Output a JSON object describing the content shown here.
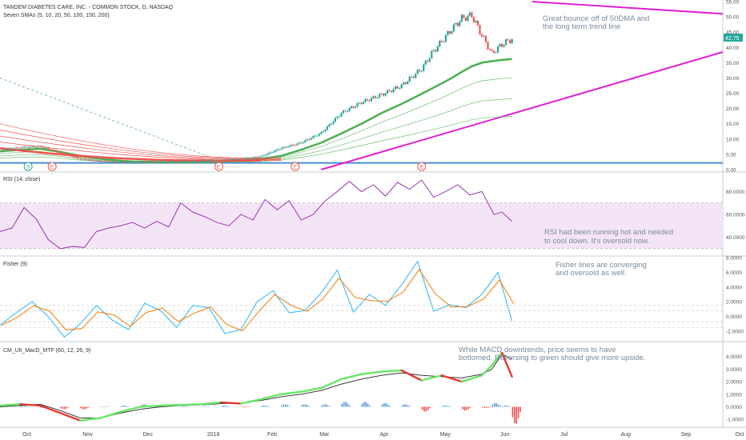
{
  "colors": {
    "candle_up": "#26a69a",
    "candle_down": "#ef5350",
    "trendline": "#e020d0",
    "sma_green": "#4caf50",
    "sma_red": "#ef5350",
    "baseline": "#4a8fd6",
    "rsi_line": "#8e24aa",
    "rsi_band": "#f3e5f5",
    "fisher_a": "#f57c00",
    "fisher_b": "#29b6f6",
    "macd_green": "#66e766",
    "macd_red": "#e53935",
    "macd_signal": "#222222",
    "hist_up": "#5c9bd6",
    "hist_down": "#ef5350",
    "annotation": "#7a8a9a",
    "price_tag": "#26a69a"
  },
  "chart_data": [
    {
      "type": "line",
      "panel": "price",
      "title": "TANDEM DIABETES CARE, INC. - COMMON STOCK, D, NASDAQ",
      "subtitle": "Seven SMAs (5, 10, 20, 50, 100, 150, 200)",
      "annotation": [
        "Great bounce off of 50DMA and",
        "the long term trend line"
      ],
      "last_price": "42.75",
      "earnings_markers": [
        "S",
        "E",
        "E",
        "E",
        "E"
      ],
      "yticks": [
        "55.00",
        "50.00",
        "45.00",
        "40.00",
        "35.00",
        "30.00",
        "25.00",
        "20.00",
        "15.00",
        "10.00",
        "5.00",
        "0.00"
      ],
      "ylim": [
        0,
        55
      ],
      "x": [
        0,
        10,
        20,
        30,
        40,
        50,
        60,
        65,
        70,
        80,
        90,
        100,
        110,
        120,
        130,
        140,
        150,
        160,
        170,
        180,
        190,
        200,
        210,
        215,
        220,
        225,
        230,
        235,
        240,
        245,
        250,
        255
      ],
      "close": [
        6.5,
        7.2,
        7.6,
        5.5,
        3.5,
        2.8,
        2.5,
        2.5,
        2.6,
        2.6,
        2.7,
        2.9,
        3.2,
        3.4,
        4.3,
        7.0,
        8.8,
        12.0,
        18.5,
        22.0,
        24.5,
        27.5,
        33.0,
        38.0,
        42.0,
        46.0,
        49.5,
        50.5,
        44.0,
        38.0,
        41.0,
        42.75
      ],
      "series": [
        {
          "name": "SMA 50",
          "values": [
            6.0,
            6.5,
            6.8,
            5.8,
            4.5,
            3.6,
            2.9,
            2.7,
            2.6,
            2.5,
            2.5,
            2.6,
            2.8,
            3.0,
            3.5,
            4.5,
            6.5,
            8.8,
            11.8,
            15.0,
            18.5,
            21.5,
            24.8,
            26.5,
            28.2,
            30.0,
            32.0,
            33.8,
            35.0,
            35.5,
            35.9,
            36.2
          ]
        }
      ]
    },
    {
      "type": "line",
      "panel": "rsi",
      "title": "RSI (14, close)",
      "annotation": [
        "RSI had been running hot and needed",
        "to cool down. It's oversold now."
      ],
      "yticks": [
        "80.0000",
        "60.0000",
        "40.0000"
      ],
      "ylim": [
        25,
        95
      ],
      "bands": [
        70,
        30
      ],
      "x": [
        0,
        6,
        12,
        18,
        24,
        30,
        36,
        42,
        48,
        54,
        60,
        66,
        72,
        78,
        84,
        90,
        96,
        102,
        108,
        114,
        120,
        126,
        132,
        138,
        144,
        150,
        156,
        162,
        168,
        174,
        180,
        186,
        192,
        198,
        204,
        210,
        216,
        222,
        228,
        234,
        240,
        246,
        250,
        255
      ],
      "values": [
        45,
        48,
        66,
        56,
        38,
        30,
        32,
        31,
        45,
        48,
        50,
        53,
        48,
        54,
        49,
        70,
        62,
        58,
        53,
        50,
        60,
        55,
        73,
        64,
        72,
        55,
        60,
        72,
        80,
        89,
        80,
        86,
        76,
        88,
        82,
        90,
        75,
        80,
        86,
        77,
        80,
        60,
        62,
        54
      ]
    },
    {
      "type": "line",
      "panel": "fisher",
      "title": "Fisher (9)",
      "annotation": [
        "Fisher lines are converging",
        "and oversold as well."
      ],
      "yticks": [
        "8.0000",
        "6.0000",
        "4.0000",
        "2.0000",
        "0.0000",
        "-2.0000"
      ],
      "ylim": [
        -3.2,
        8
      ],
      "x": [
        0,
        8,
        16,
        24,
        32,
        40,
        48,
        56,
        64,
        72,
        80,
        88,
        96,
        104,
        112,
        120,
        128,
        136,
        144,
        152,
        160,
        168,
        176,
        184,
        192,
        200,
        208,
        216,
        224,
        232,
        240,
        248,
        255
      ],
      "values": [
        -1.2,
        0.5,
        2.0,
        0.0,
        -2.8,
        -1.0,
        1.5,
        -0.5,
        -1.8,
        1.8,
        0.8,
        -1.5,
        1.5,
        1.2,
        -2.3,
        -1.8,
        2.0,
        3.5,
        0.5,
        0.8,
        3.2,
        6.3,
        0.6,
        3.0,
        1.5,
        4.3,
        7.5,
        0.7,
        1.6,
        1.2,
        3.0,
        6.0,
        -0.6
      ]
    },
    {
      "type": "bar",
      "panel": "macd",
      "title": "CM_Ult_MacD_MTF (60, 12, 26, 9)",
      "annotation": [
        "While MACD downtrends, price seems to have",
        "bottomed. Reversing to green should give more upside."
      ],
      "yticks": [
        "4.0000",
        "3.0000",
        "2.0000",
        "1.0000",
        "0.0000",
        "-1.0000"
      ],
      "ylim": [
        -1.5,
        5
      ],
      "x": [
        0,
        10,
        20,
        30,
        40,
        50,
        60,
        70,
        80,
        90,
        100,
        110,
        120,
        130,
        140,
        150,
        160,
        170,
        180,
        190,
        200,
        210,
        220,
        230,
        240,
        245,
        250,
        255
      ],
      "macd": [
        0.1,
        0.2,
        0.1,
        -0.5,
        -1.1,
        -0.9,
        -0.4,
        0.0,
        0.1,
        0.15,
        0.2,
        0.35,
        0.25,
        0.6,
        1.0,
        1.2,
        1.5,
        2.2,
        2.6,
        2.8,
        2.9,
        2.1,
        2.5,
        2.0,
        2.5,
        3.3,
        4.3,
        2.4
      ],
      "signal": [
        0.0,
        0.1,
        0.2,
        -0.3,
        -0.9,
        -0.9,
        -0.5,
        -0.2,
        0.0,
        0.1,
        0.15,
        0.25,
        0.3,
        0.5,
        0.8,
        1.0,
        1.3,
        1.8,
        2.2,
        2.5,
        2.7,
        2.5,
        2.4,
        2.3,
        2.6,
        3.0,
        4.2,
        3.8
      ],
      "histogram": [
        0.1,
        0.1,
        -0.1,
        -0.2,
        -0.2,
        0.0,
        0.1,
        0.2,
        0.1,
        0.05,
        0.05,
        0.1,
        -0.05,
        0.1,
        0.2,
        0.2,
        0.2,
        0.4,
        0.4,
        0.3,
        0.2,
        -0.4,
        0.1,
        -0.3,
        -0.1,
        0.3,
        0.1,
        -1.4
      ]
    }
  ],
  "x_axis": {
    "labels": [
      "Oct",
      "Nov",
      "Dec",
      "2018",
      "Feb",
      "Mar",
      "Apr",
      "May",
      "Jun",
      "Jul",
      "Aug",
      "Sep",
      "Oct"
    ],
    "positions": [
      0,
      30,
      60,
      92,
      122,
      148,
      178,
      208,
      238,
      268,
      298,
      328,
      355
    ]
  }
}
